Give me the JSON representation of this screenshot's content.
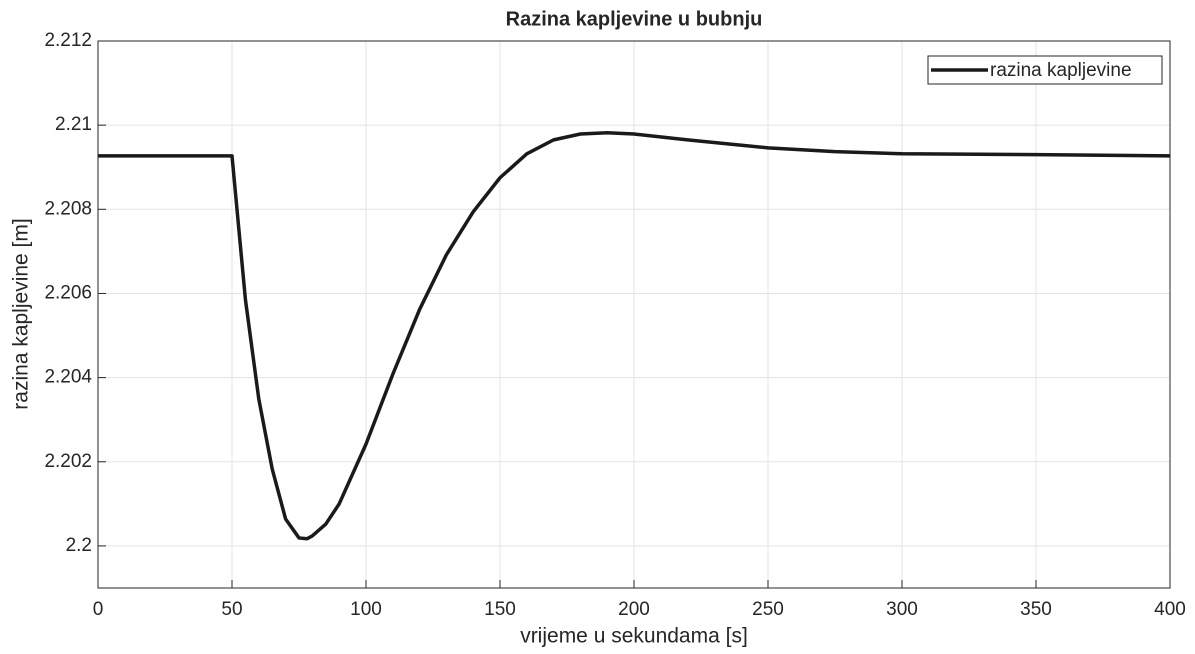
{
  "chart_data": {
    "type": "line",
    "title": "Razina kapljevine u bubnju",
    "xlabel": "vrijeme u sekundama [s]",
    "ylabel": "razina kapljevine [m]",
    "x": [
      0,
      50,
      55,
      60,
      65,
      70,
      75,
      78,
      80,
      85,
      90,
      100,
      110,
      120,
      130,
      140,
      150,
      160,
      170,
      180,
      190,
      200,
      220,
      250,
      275,
      300,
      350,
      400
    ],
    "series": [
      {
        "name": "razina kapljevine",
        "color": "#1a1a1a",
        "values": [
          2.20927,
          2.20927,
          2.20586,
          2.20349,
          2.20183,
          2.20064,
          2.20019,
          2.20017,
          2.20024,
          2.20052,
          2.201,
          2.20242,
          2.20408,
          2.20562,
          2.20692,
          2.20794,
          2.20875,
          2.20932,
          2.20965,
          2.20979,
          2.20982,
          2.20979,
          2.20965,
          2.20946,
          2.20937,
          2.20932,
          2.2093,
          2.20927
        ]
      }
    ],
    "xlim": [
      0,
      400
    ],
    "xticks": [
      0,
      50,
      100,
      150,
      200,
      250,
      300,
      350,
      400
    ],
    "ylim": [
      2.199,
      2.212
    ],
    "yticks": [
      2.2,
      2.202,
      2.204,
      2.206,
      2.208,
      2.21,
      2.212
    ],
    "grid": true,
    "legend": "upper right"
  }
}
